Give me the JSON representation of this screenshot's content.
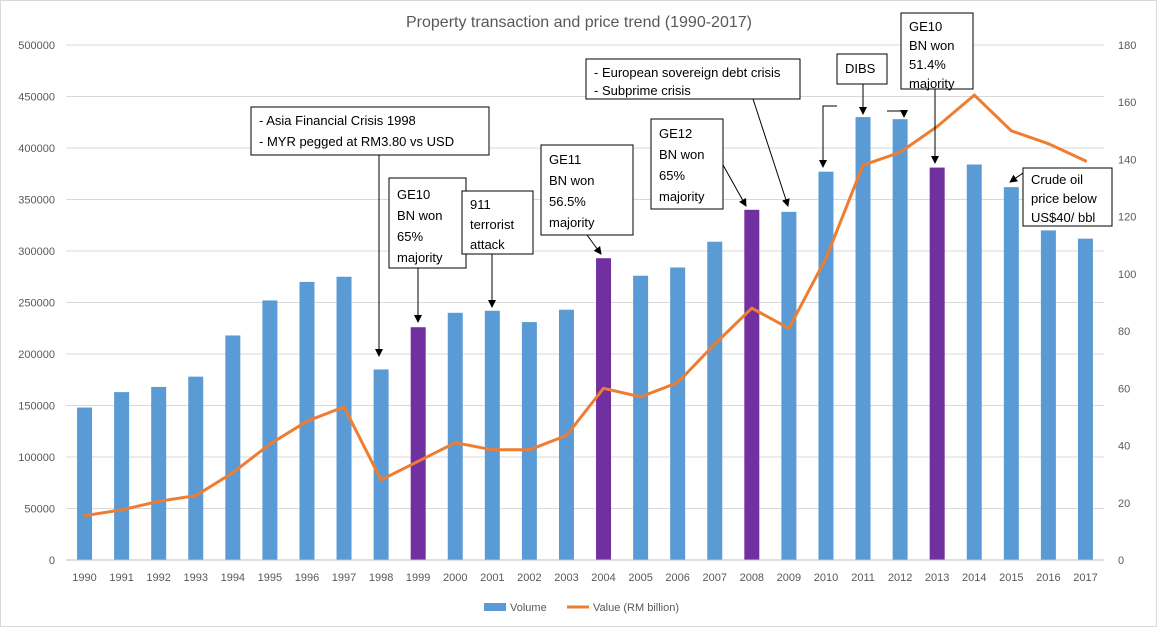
{
  "chart_data": {
    "type": "bar",
    "title": "Property transaction and price trend (1990-2017)",
    "categories": [
      "1990",
      "1991",
      "1992",
      "1993",
      "1994",
      "1995",
      "1996",
      "1997",
      "1998",
      "1999",
      "2000",
      "2001",
      "2002",
      "2003",
      "2004",
      "2005",
      "2006",
      "2007",
      "2008",
      "2009",
      "2010",
      "2011",
      "2012",
      "2013",
      "2014",
      "2015",
      "2016",
      "2017"
    ],
    "series": [
      {
        "name": "Volume",
        "type": "bar",
        "axis": "left",
        "color": "#5B9BD5",
        "highlight_color": "#7030A0",
        "values": [
          148000,
          163000,
          168000,
          178000,
          218000,
          252000,
          270000,
          275000,
          185000,
          226000,
          240000,
          242000,
          231000,
          243000,
          293000,
          276000,
          284000,
          309000,
          340000,
          338000,
          377000,
          430000,
          428000,
          381000,
          384000,
          362000,
          320000,
          312000
        ]
      },
      {
        "name": "Value (RM billion)",
        "type": "line",
        "axis": "right",
        "color": "#ED7D31",
        "values": [
          15.5,
          17.5,
          20.5,
          22.5,
          30.5,
          40.5,
          48.5,
          53.5,
          28.0,
          34.5,
          41.0,
          38.5,
          38.5,
          43.5,
          60.0,
          57.0,
          62.0,
          75.5,
          88.0,
          81.0,
          105.5,
          138.0,
          142.5,
          151.5,
          162.5,
          150.0,
          145.5,
          139.5
        ]
      }
    ],
    "highlighted_years": [
      "1999",
      "2004",
      "2008",
      "2013"
    ],
    "y_left": {
      "lim": [
        0,
        500000
      ],
      "ticks": [
        "0",
        "50000",
        "100000",
        "150000",
        "200000",
        "250000",
        "300000",
        "350000",
        "400000",
        "450000",
        "500000"
      ]
    },
    "y_right": {
      "lim": [
        0,
        180
      ],
      "ticks": [
        "0",
        "20",
        "40",
        "60",
        "80",
        "100",
        "120",
        "140",
        "160",
        "180"
      ]
    },
    "grid": true,
    "legend": "bottom-center"
  },
  "annotations": [
    {
      "lines": [
        "- Asia Financial Crisis 1998",
        "- MYR pegged at RM3.80  vs USD"
      ]
    },
    {
      "lines": [
        "GE10",
        "BN won",
        "65%",
        "majority"
      ]
    },
    {
      "lines": [
        "911",
        "terrorist",
        "attack"
      ]
    },
    {
      "lines": [
        "GE11",
        "BN won",
        "56.5%",
        "majority"
      ]
    },
    {
      "lines": [
        "GE12",
        "BN won",
        "65%",
        "majority"
      ]
    },
    {
      "lines": [
        "- European sovereign debt crisis",
        "- Subprime crisis"
      ]
    },
    {
      "lines": [
        "DIBS"
      ]
    },
    {
      "lines": [
        "GE10",
        "BN won",
        "51.4%",
        "majority"
      ]
    },
    {
      "lines": [
        "Crude oil",
        "price below",
        "US$40/ bbl"
      ]
    }
  ]
}
